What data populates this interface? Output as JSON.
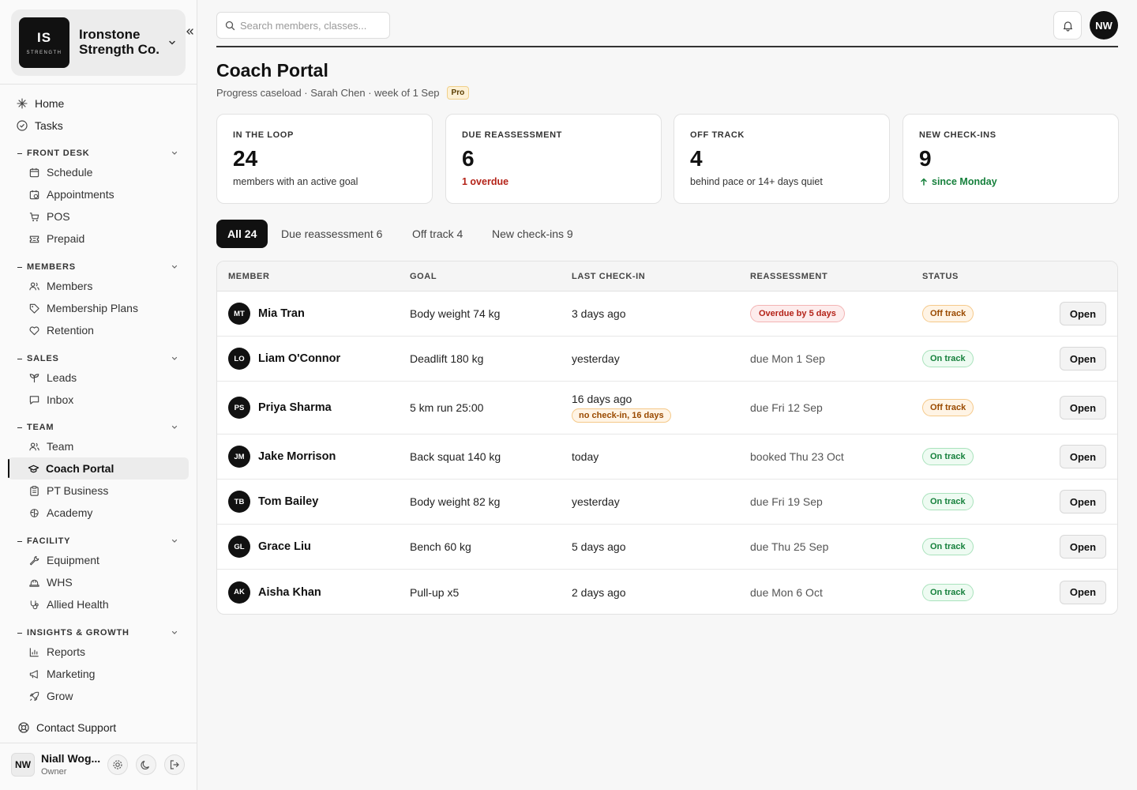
{
  "brand": {
    "logo_initials": "IS",
    "logo_tag": "STRENGTH",
    "name": "Ironstone Strength Co."
  },
  "nav": {
    "top": [
      {
        "label": "Home",
        "icon": "sparkle-icon"
      },
      {
        "label": "Tasks",
        "icon": "check-circle-icon"
      }
    ],
    "sections": [
      {
        "title": "FRONT DESK",
        "items": [
          {
            "label": "Schedule",
            "icon": "calendar-icon"
          },
          {
            "label": "Appointments",
            "icon": "calendar-clock-icon"
          },
          {
            "label": "POS",
            "icon": "cart-icon"
          },
          {
            "label": "Prepaid",
            "icon": "ticket-icon"
          }
        ]
      },
      {
        "title": "MEMBERS",
        "items": [
          {
            "label": "Members",
            "icon": "users-icon"
          },
          {
            "label": "Membership Plans",
            "icon": "tag-icon"
          },
          {
            "label": "Retention",
            "icon": "heart-icon"
          }
        ]
      },
      {
        "title": "SALES",
        "items": [
          {
            "label": "Leads",
            "icon": "sprout-icon"
          },
          {
            "label": "Inbox",
            "icon": "message-icon"
          }
        ]
      },
      {
        "title": "TEAM",
        "items": [
          {
            "label": "Team",
            "icon": "users-icon"
          },
          {
            "label": "Coach Portal",
            "icon": "graduation-cap-icon",
            "active": true
          },
          {
            "label": "PT Business",
            "icon": "clipboard-icon"
          },
          {
            "label": "Academy",
            "icon": "brain-icon"
          }
        ]
      },
      {
        "title": "FACILITY",
        "items": [
          {
            "label": "Equipment",
            "icon": "wrench-icon"
          },
          {
            "label": "WHS",
            "icon": "hard-hat-icon"
          },
          {
            "label": "Allied Health",
            "icon": "stethoscope-icon"
          }
        ]
      },
      {
        "title": "INSIGHTS & GROWTH",
        "items": [
          {
            "label": "Reports",
            "icon": "bar-chart-icon"
          },
          {
            "label": "Marketing",
            "icon": "megaphone-icon"
          },
          {
            "label": "Grow",
            "icon": "rocket-icon"
          }
        ]
      }
    ],
    "support": "Contact Support"
  },
  "user": {
    "initials": "NW",
    "name": "Niall Wog...",
    "role": "Owner"
  },
  "search": {
    "placeholder": "Search members, classes..."
  },
  "header": {
    "avatar": "NW"
  },
  "page": {
    "title": "Coach Portal",
    "subtitle": "Progress caseload · Sarah Chen · week of 1 Sep",
    "badge": "Pro"
  },
  "stats": [
    {
      "label": "IN THE LOOP",
      "value": "24",
      "note": "members with an active goal",
      "tone": "normal"
    },
    {
      "label": "DUE REASSESSMENT",
      "value": "6",
      "note": "1 overdue",
      "tone": "red"
    },
    {
      "label": "OFF TRACK",
      "value": "4",
      "note": "behind pace or 14+ days quiet",
      "tone": "normal"
    },
    {
      "label": "NEW CHECK-INS",
      "value": "9",
      "note": "since Monday",
      "tone": "green"
    }
  ],
  "tabs": [
    {
      "label": "All 24",
      "active": true
    },
    {
      "label": "Due reassessment 6"
    },
    {
      "label": "Off track 4"
    },
    {
      "label": "New check-ins 9"
    }
  ],
  "table": {
    "columns": [
      "MEMBER",
      "GOAL",
      "LAST CHECK-IN",
      "REASSESSMENT",
      "STATUS"
    ],
    "open_label": "Open",
    "rows": [
      {
        "initials": "MT",
        "name": "Mia Tran",
        "goal": "Body weight 74 kg",
        "checkin": "3 days ago",
        "reassessment": "Overdue by 5 days",
        "reassess_overdue": true,
        "status": "Off track",
        "status_tone": "off"
      },
      {
        "initials": "LO",
        "name": "Liam O'Connor",
        "goal": "Deadlift 180 kg",
        "checkin": "yesterday",
        "reassessment": "due Mon 1 Sep",
        "status": "On track",
        "status_tone": "on"
      },
      {
        "initials": "PS",
        "name": "Priya Sharma",
        "goal": "5 km run 25:00",
        "checkin": "16 days ago",
        "checkin_warning": "no check-in, 16 days",
        "reassessment": "due Fri 12 Sep",
        "status": "Off track",
        "status_tone": "off"
      },
      {
        "initials": "JM",
        "name": "Jake Morrison",
        "goal": "Back squat 140 kg",
        "checkin": "today",
        "reassessment": "booked Thu 23 Oct",
        "status": "On track",
        "status_tone": "on"
      },
      {
        "initials": "TB",
        "name": "Tom Bailey",
        "goal": "Body weight 82 kg",
        "checkin": "yesterday",
        "reassessment": "due Fri 19 Sep",
        "status": "On track",
        "status_tone": "on"
      },
      {
        "initials": "GL",
        "name": "Grace Liu",
        "goal": "Bench 60 kg",
        "checkin": "5 days ago",
        "reassessment": "due Thu 25 Sep",
        "status": "On track",
        "status_tone": "on"
      },
      {
        "initials": "AK",
        "name": "Aisha Khan",
        "goal": "Pull-up x5",
        "checkin": "2 days ago",
        "reassessment": "due Mon 6 Oct",
        "status": "On track",
        "status_tone": "on"
      }
    ]
  }
}
